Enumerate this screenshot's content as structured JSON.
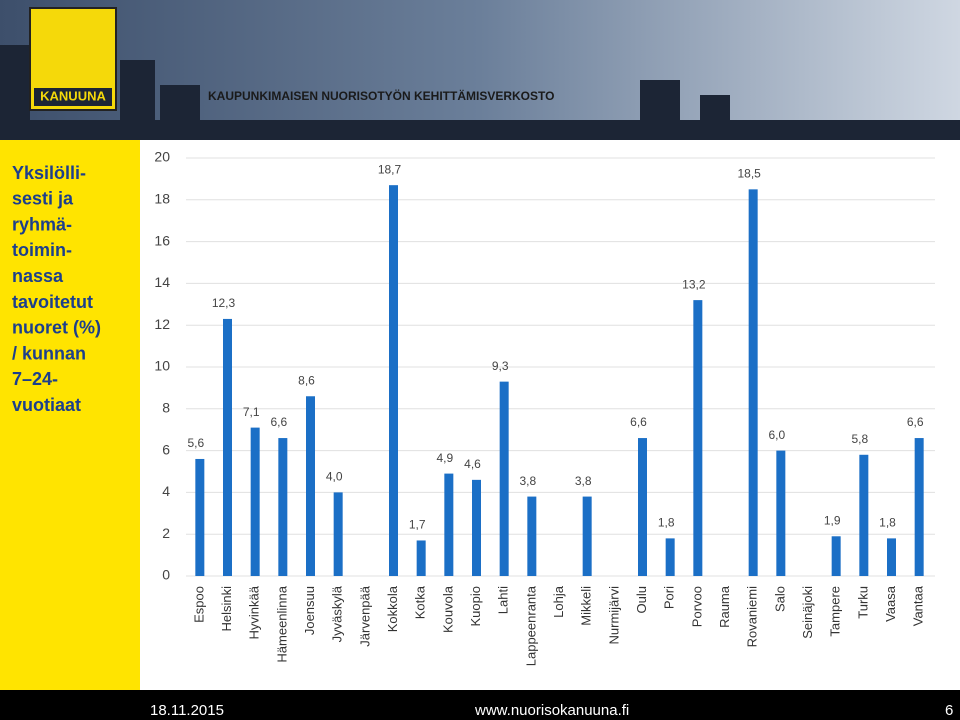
{
  "header": {
    "logo_text": "KANUUNA",
    "org_name": "KAUPUNKIMAISEN NUORISOTYÖN KEHITTÄMISVERKOSTO"
  },
  "chart_data": {
    "type": "bar",
    "title": [
      "Yksilölli-",
      "sesti ja",
      "ryhmä-",
      "toimin-",
      "nassa",
      "tavoitetut",
      "nuoret (%)",
      "/ kunnan",
      "7–24-",
      "vuotiaat"
    ],
    "categories": [
      "Espoo",
      "Helsinki",
      "Hyvinkää",
      "Hämeenlinna",
      "Joensuu",
      "Jyväskylä",
      "Järvenpää",
      "Kokkola",
      "Kotka",
      "Kouvola",
      "Kuopio",
      "Lahti",
      "Lappeenranta",
      "Lohja",
      "Mikkeli",
      "Nurmijärvi",
      "Oulu",
      "Pori",
      "Porvoo",
      "Rauma",
      "Rovaniemi",
      "Salo",
      "Seinäjoki",
      "Tampere",
      "Turku",
      "Vaasa",
      "Vantaa"
    ],
    "values": [
      5.6,
      12.3,
      7.1,
      6.6,
      8.6,
      4.0,
      null,
      18.7,
      1.7,
      4.9,
      4.6,
      9.3,
      3.8,
      null,
      3.8,
      null,
      6.6,
      1.8,
      13.2,
      null,
      18.5,
      6.0,
      null,
      1.9,
      5.8,
      1.8,
      6.6
    ],
    "value_labels": [
      "5,6",
      "12,3",
      "7,1",
      "6,6",
      "8,6",
      "4,0",
      null,
      "18,7",
      "1,7",
      "4,9",
      "4,6",
      "9,3",
      "3,8",
      null,
      "3,8",
      null,
      "6,6",
      "1,8",
      "13,2",
      null,
      "18,5",
      "6,0",
      null,
      "1,9",
      "5,8",
      "1,8",
      "6,6"
    ],
    "color": "#1b6fc6",
    "ylim": [
      0,
      20
    ],
    "yticks": [
      0,
      2,
      4,
      6,
      8,
      10,
      12,
      14,
      16,
      18,
      20
    ],
    "grid": true
  },
  "footer": {
    "date": "18.11.2015",
    "url": "www.nuorisokanuuna.fi",
    "page": "6"
  }
}
